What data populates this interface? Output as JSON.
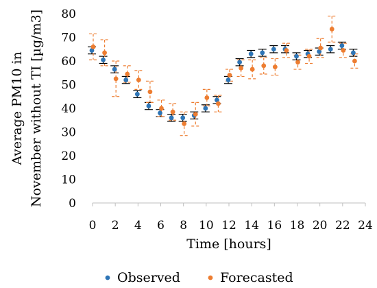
{
  "chart_data": {
    "type": "scatter",
    "title": "",
    "xlabel": "Time [hours]",
    "ylabel_lines": [
      "Average PM10 in",
      "November without TI [µg/m3]"
    ],
    "xlim": [
      0,
      24
    ],
    "ylim": [
      0,
      80
    ],
    "x_ticks": [
      0,
      2,
      4,
      6,
      8,
      10,
      12,
      14,
      16,
      18,
      20,
      22,
      24
    ],
    "y_ticks": [
      0,
      10,
      20,
      30,
      40,
      50,
      60,
      70,
      80
    ],
    "grid": false,
    "legend_position": "bottom",
    "series": [
      {
        "name": "Observed",
        "color": "#2e75b6",
        "error_style": "solid",
        "x": [
          0,
          1,
          2,
          3,
          4,
          5,
          6,
          7,
          8,
          9,
          10,
          11,
          12,
          13,
          14,
          15,
          16,
          17,
          18,
          19,
          20,
          21,
          22,
          23
        ],
        "y": [
          64.5,
          60.5,
          56.5,
          52,
          46,
          41,
          38,
          36,
          36,
          37,
          40,
          43.5,
          52,
          59.5,
          63,
          63.5,
          65,
          65,
          62,
          63,
          64,
          65,
          66.5,
          63.5
        ],
        "error": [
          1.5,
          1.5,
          1.5,
          1.5,
          1.5,
          1.5,
          1.5,
          1.5,
          1.5,
          1.5,
          1.5,
          1.5,
          1.5,
          1.5,
          1.5,
          1.5,
          1.5,
          1.5,
          1.5,
          1.5,
          1.5,
          1.5,
          1.5,
          1.5
        ]
      },
      {
        "name": "Forecasted",
        "color": "#ed7d31",
        "error_style": "dashed",
        "x": [
          0,
          1,
          2,
          3,
          4,
          5,
          6,
          7,
          8,
          9,
          10,
          11,
          12,
          13,
          14,
          15,
          16,
          17,
          18,
          19,
          20,
          21,
          22,
          23
        ],
        "y": [
          66,
          63.5,
          52.5,
          54.5,
          52,
          47,
          40,
          38.5,
          33.5,
          37.5,
          44.5,
          42,
          54,
          57,
          56.5,
          58,
          57.5,
          64.5,
          59.5,
          62,
          65.5,
          73.5,
          64.5,
          60
        ],
        "error": [
          5.5,
          5.5,
          7.5,
          3.5,
          4,
          4.5,
          3.5,
          3.5,
          5,
          5,
          3.5,
          3.5,
          2.5,
          3.5,
          4,
          3.5,
          3.5,
          3,
          3,
          3,
          4,
          5.5,
          3,
          3
        ]
      }
    ]
  }
}
